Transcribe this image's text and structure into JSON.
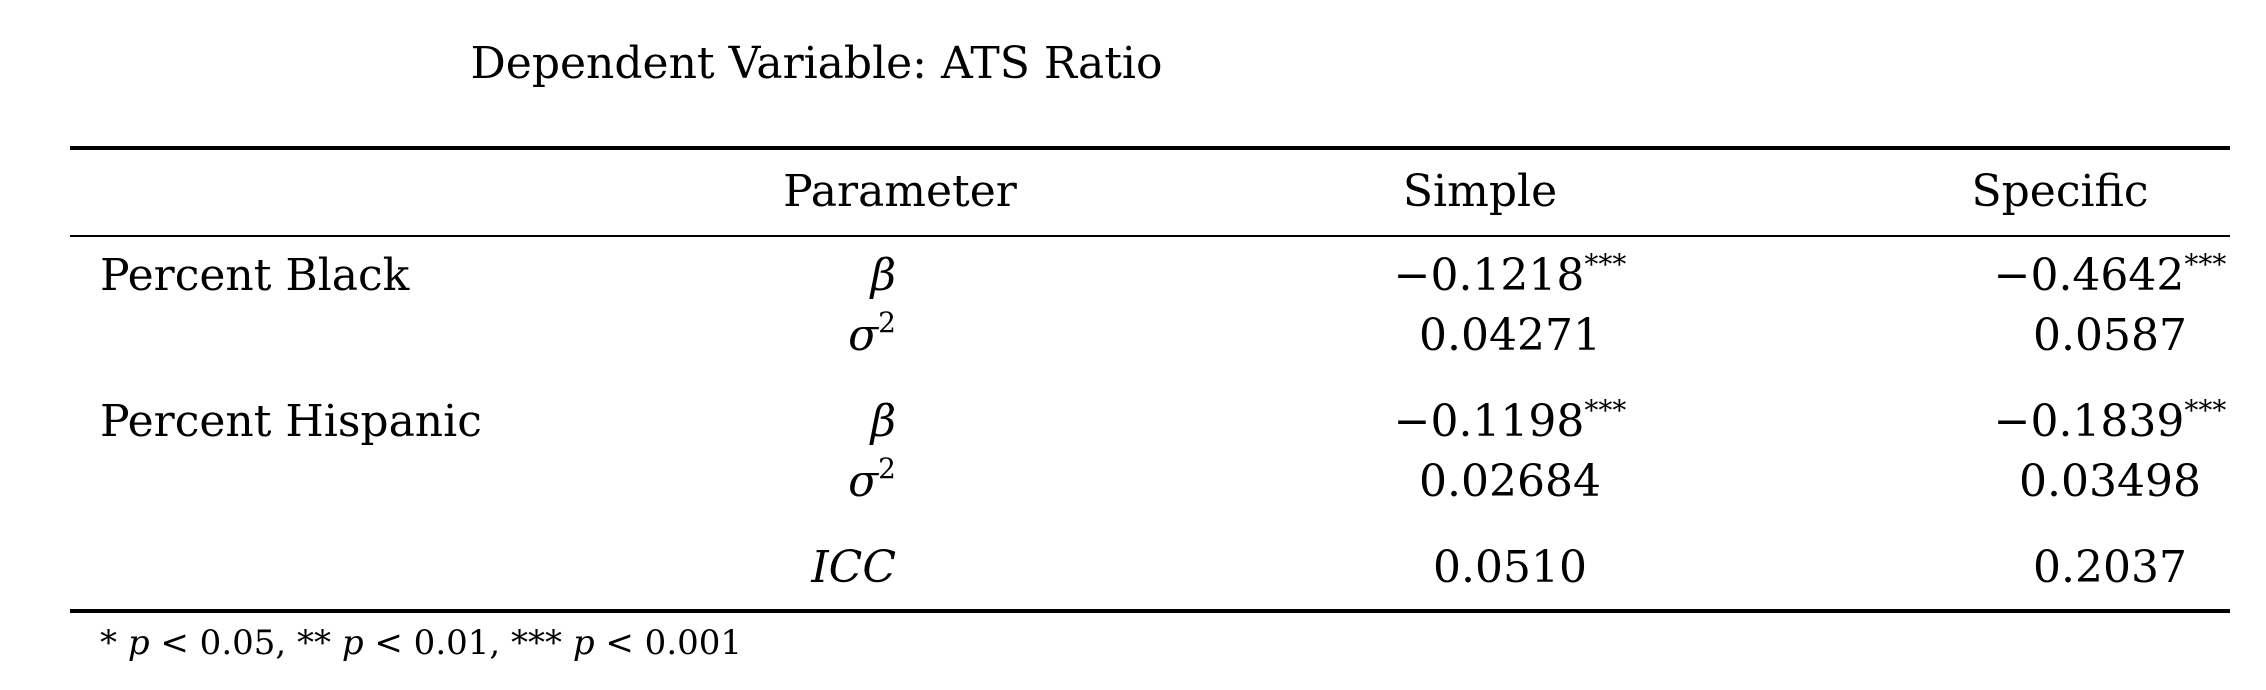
{
  "title": "Dependent Variable: ATS Ratio",
  "columns": {
    "parameter": "Parameter",
    "simple": "Simple",
    "specific": "Specific"
  },
  "rows": [
    {
      "label": "Percent Black",
      "beta_symbol": "β",
      "sigma_symbol": "σ",
      "sigma_exponent": "2",
      "beta_simple": "−0.1218",
      "beta_simple_stars": "***",
      "beta_specific": "−0.4642",
      "beta_specific_stars": "***",
      "sigma_simple": "0.04271",
      "sigma_specific": "0.0587"
    },
    {
      "label": "Percent Hispanic",
      "beta_symbol": "β",
      "sigma_symbol": "σ",
      "sigma_exponent": "2",
      "beta_simple": "−0.1198",
      "beta_simple_stars": "***",
      "beta_specific": "−0.1839",
      "beta_specific_stars": "***",
      "sigma_simple": "0.02684",
      "sigma_specific": "0.03498"
    }
  ],
  "icc": {
    "symbol": "ICC",
    "simple": "0.0510",
    "specific": "0.2037"
  },
  "footnote": {
    "s1": "* ",
    "p": "p",
    "t1": " < 0.05, ** ",
    "t2": " < 0.01, *** ",
    "t3": " < 0.001"
  }
}
